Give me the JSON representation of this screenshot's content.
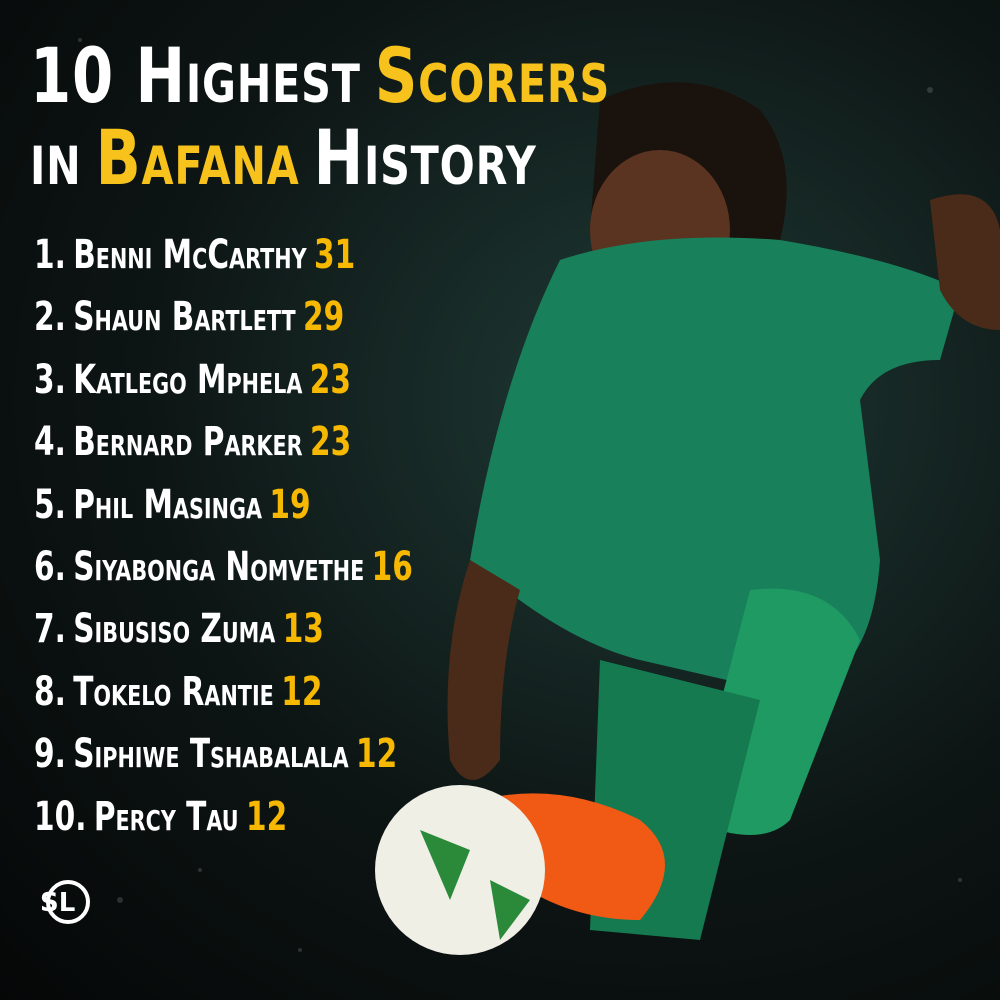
{
  "header": {
    "title_lines": [
      [
        {
          "text": "10 Highest",
          "highlight": false
        },
        {
          "text": "Scorers",
          "highlight": true
        }
      ],
      [
        {
          "text": "in",
          "highlight": false
        },
        {
          "text": "Bafana",
          "highlight": true
        },
        {
          "text": "History",
          "highlight": false
        }
      ]
    ]
  },
  "list": {
    "items": [
      {
        "rank": "1.",
        "name": "Benni McCarthy",
        "goals": 31
      },
      {
        "rank": "2.",
        "name": "Shaun Bartlett",
        "goals": 29
      },
      {
        "rank": "3.",
        "name": "Katlego Mphela",
        "goals": 23
      },
      {
        "rank": "4.",
        "name": "Bernard Parker",
        "goals": 23
      },
      {
        "rank": "5.",
        "name": "Phil Masinga",
        "goals": 19
      },
      {
        "rank": "6.",
        "name": "Siyabonga Nomvethe",
        "goals": 16
      },
      {
        "rank": "7.",
        "name": "Sibusiso Zuma",
        "goals": 13
      },
      {
        "rank": "8.",
        "name": "Tokelo Rantie",
        "goals": 12
      },
      {
        "rank": "9.",
        "name": "Siphiwe Tshabalala",
        "goals": 12
      },
      {
        "rank": "10.",
        "name": "Percy Tau",
        "goals": 12
      }
    ]
  },
  "logo": {
    "text": "SL"
  }
}
